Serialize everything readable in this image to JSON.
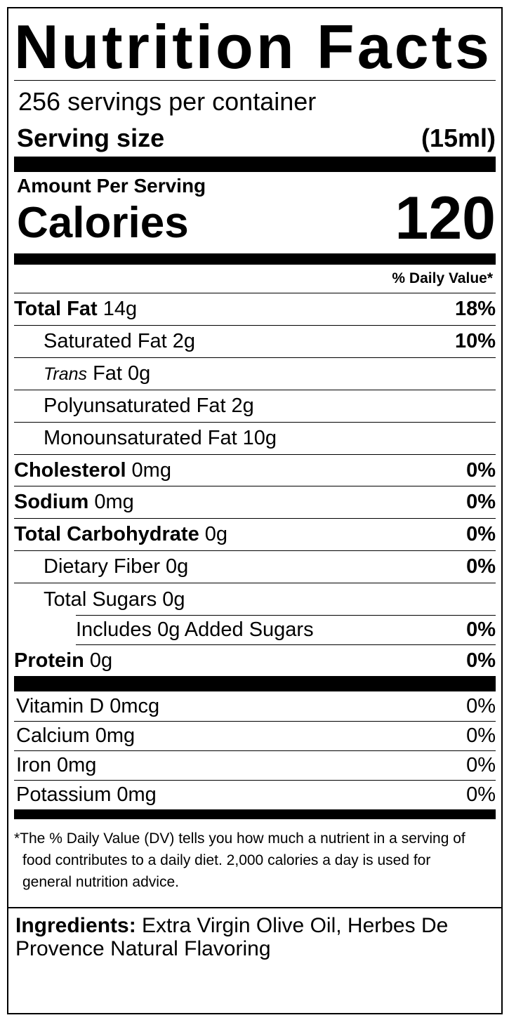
{
  "title": "Nutrition Facts",
  "servings_per_container": "256 servings per container",
  "serving_size": {
    "label": "Serving size",
    "value": "(15ml)"
  },
  "amount_per_serving": "Amount Per Serving",
  "calories": {
    "label": "Calories",
    "value": 120
  },
  "daily_value_header": "% Daily Value*",
  "nutrients": [
    {
      "name": "Total Fat",
      "amount": "14g",
      "daily_value": "18%"
    },
    {
      "name": "Saturated Fat",
      "amount": "2g",
      "daily_value": "10%"
    },
    {
      "name_italic": "Trans",
      "name": "Fat",
      "amount": "0g"
    },
    {
      "name": "Polyunsaturated Fat",
      "amount": "2g"
    },
    {
      "name": "Monounsaturated Fat",
      "amount": "10g"
    },
    {
      "name": "Cholesterol",
      "amount": "0mg",
      "daily_value": "0%"
    },
    {
      "name": "Sodium",
      "amount": "0mg",
      "daily_value": "0%"
    },
    {
      "name": "Total Carbohydrate",
      "amount": "0g",
      "daily_value": "0%"
    },
    {
      "name": "Dietary Fiber",
      "amount": "0g",
      "daily_value": "0%"
    },
    {
      "name": "Total Sugars",
      "amount": "0g"
    },
    {
      "text": "Includes 0g Added Sugars",
      "daily_value": "0%"
    },
    {
      "name": "Protein",
      "amount": "0g",
      "daily_value": "0%"
    }
  ],
  "vitamins": [
    {
      "name": "Vitamin D",
      "amount": "0mcg",
      "daily_value": "0%"
    },
    {
      "name": "Calcium",
      "amount": "0mg",
      "daily_value": "0%"
    },
    {
      "name": "Iron",
      "amount": "0mg",
      "daily_value": "0%"
    },
    {
      "name": "Potassium",
      "amount": "0mg",
      "daily_value": "0%"
    }
  ],
  "footnote": "*The % Daily Value (DV) tells you how much a nutrient in a serving of food contributes to a daily diet. 2,000 calories a day is used for general nutrition advice.",
  "ingredients": {
    "label": "Ingredients:",
    "text": "Extra Virgin Olive Oil, Herbes De Provence Natural Flavoring"
  }
}
